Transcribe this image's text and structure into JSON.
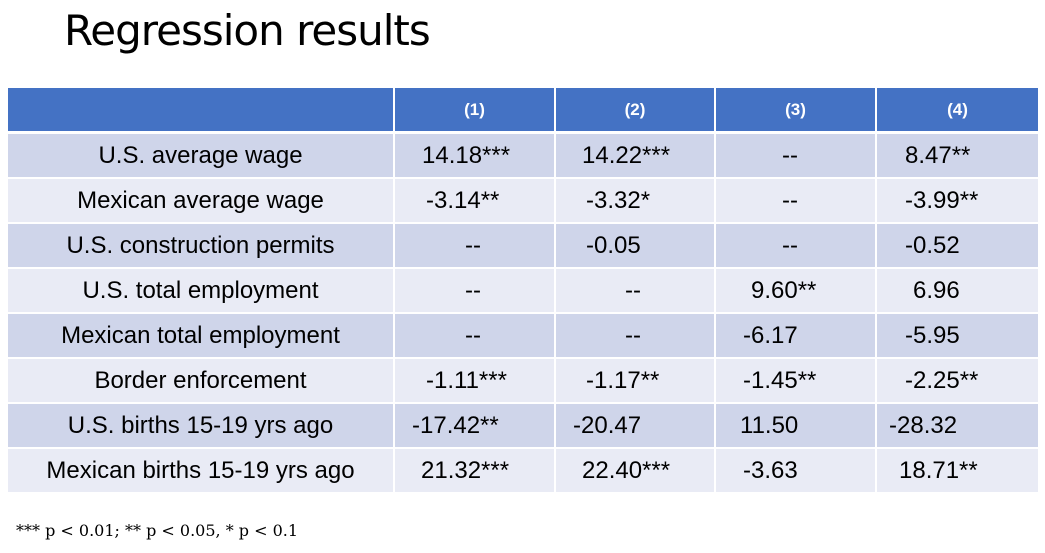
{
  "slide": {
    "title": "Regression results",
    "footnote": "*** p < 0.01; ** p < 0.05, * p < 0.1"
  },
  "table": {
    "columns": [
      "",
      "(1)",
      "(2)",
      "(3)",
      "(4)"
    ],
    "header_color": "#4472c4",
    "row_colors": [
      "#cfd5ea",
      "#e9ebf5"
    ],
    "rows": [
      {
        "label": "U.S. average wage",
        "values": [
          "14.18***",
          "14.22***",
          "--",
          "8.47**"
        ]
      },
      {
        "label": "Mexican average wage",
        "values": [
          "-3.14**",
          "-3.32*",
          "--",
          "-3.99**"
        ]
      },
      {
        "label": "U.S. construction permits",
        "values": [
          "--",
          "-0.05",
          "--",
          "-0.52"
        ]
      },
      {
        "label": "U.S. total employment",
        "values": [
          "--",
          "--",
          "9.60**",
          "6.96"
        ]
      },
      {
        "label": "Mexican total employment",
        "values": [
          "--",
          "--",
          "-6.17",
          "-5.95"
        ]
      },
      {
        "label": "Border enforcement",
        "values": [
          "-1.11***",
          "-1.17**",
          "-1.45**",
          "-2.25**"
        ]
      },
      {
        "label": "U.S. births 15-19 yrs ago",
        "values": [
          "-17.42**",
          "-20.47",
          "11.50",
          "-28.32"
        ]
      },
      {
        "label": "Mexican births 15-19 yrs ago",
        "values": [
          "21.32***",
          "22.40***",
          "-3.63",
          "18.71**"
        ]
      }
    ]
  }
}
